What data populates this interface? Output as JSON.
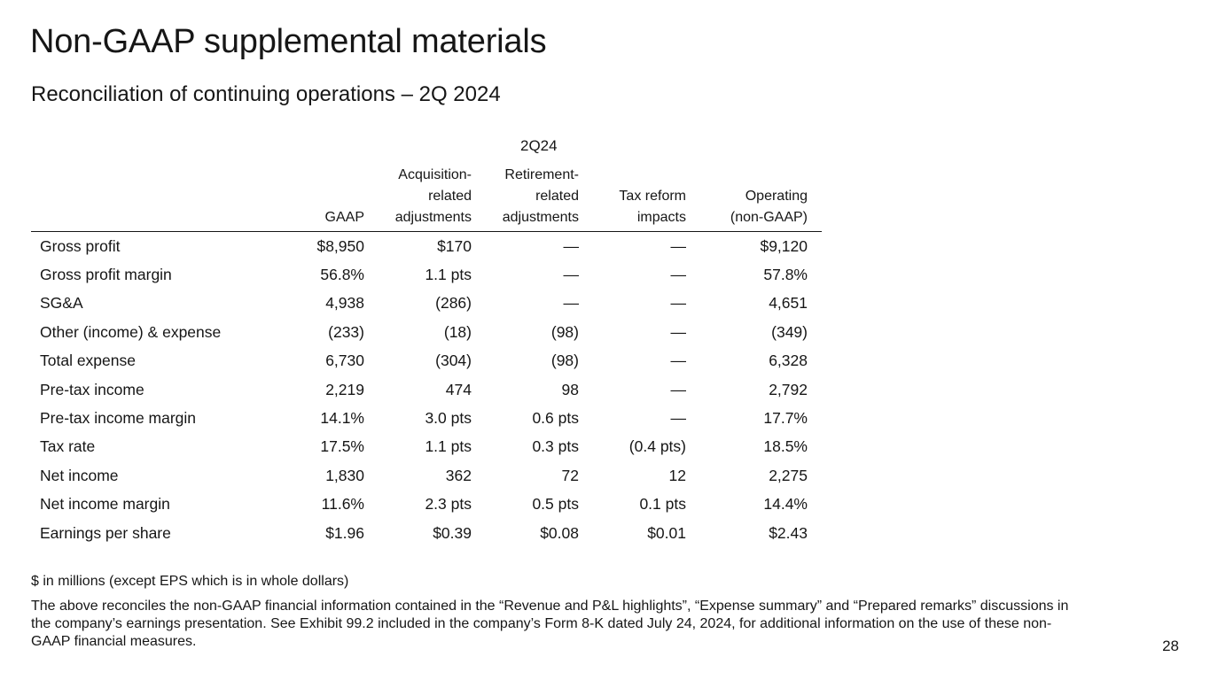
{
  "slide": {
    "title": "Non-GAAP supplemental materials",
    "subtitle": "Reconciliation of continuing operations – 2Q 2024",
    "period": "2Q24",
    "page_number": "28"
  },
  "table": {
    "headers": [
      "",
      "GAAP",
      "Acquisition-\nrelated\nadjustments",
      "Retirement-\nrelated\nadjustments",
      "Tax reform\nimpacts",
      "Operating\n(non-GAAP)"
    ],
    "rows": [
      [
        "Gross profit",
        "$8,950",
        "$170",
        "—",
        "—",
        "$9,120"
      ],
      [
        "Gross profit margin",
        "56.8%",
        "1.1 pts",
        "—",
        "—",
        "57.8%"
      ],
      [
        "SG&A",
        "4,938",
        "(286)",
        "—",
        "—",
        "4,651"
      ],
      [
        "Other (income) & expense",
        "(233)",
        "(18)",
        "(98)",
        "—",
        "(349)"
      ],
      [
        "Total expense",
        "6,730",
        "(304)",
        "(98)",
        "—",
        "6,328"
      ],
      [
        "Pre-tax income",
        "2,219",
        "474",
        "98",
        "—",
        "2,792"
      ],
      [
        "Pre-tax income margin",
        "14.1%",
        "3.0 pts",
        "0.6 pts",
        "—",
        "17.7%"
      ],
      [
        "Tax rate",
        "17.5%",
        "1.1 pts",
        "0.3 pts",
        "(0.4 pts)",
        "18.5%"
      ],
      [
        "Net income",
        "1,830",
        "362",
        "72",
        "12",
        "2,275"
      ],
      [
        "Net income margin",
        "11.6%",
        "2.3 pts",
        "0.5 pts",
        "0.1 pts",
        "14.4%"
      ],
      [
        "Earnings per share",
        "$1.96",
        "$0.39",
        "$0.08",
        "$0.01",
        "$2.43"
      ]
    ]
  },
  "notes": {
    "units": "$ in millions (except EPS which is in whole dollars)",
    "disclosure": "The above reconciles the non-GAAP financial information contained in the “Revenue and P&L highlights”, “Expense summary” and “Prepared remarks” discussions in the company’s earnings presentation. See Exhibit 99.2 included in the company’s Form 8-K dated July 24, 2024, for additional information on the use of these non-GAAP financial measures."
  }
}
